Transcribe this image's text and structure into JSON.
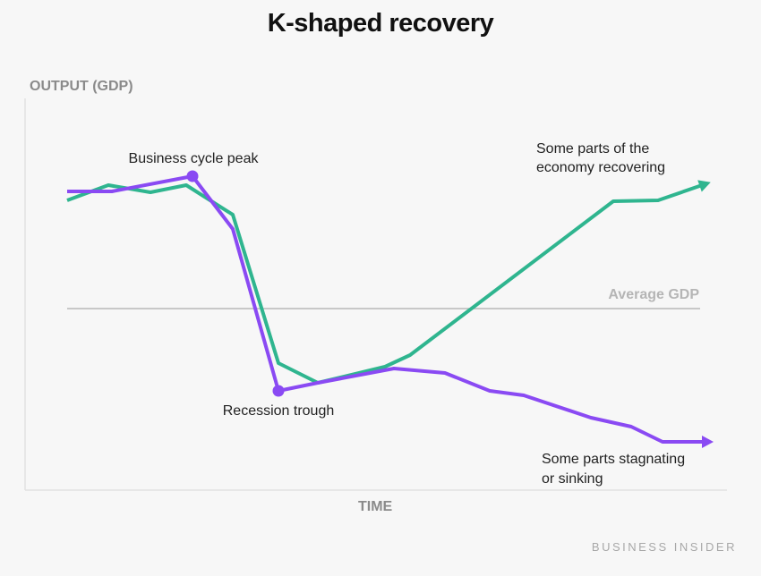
{
  "chart_data": {
    "type": "line",
    "title": "K-shaped recovery",
    "xlabel": "TIME",
    "ylabel": "OUTPUT (GDP)",
    "xlim": [
      0,
      80
    ],
    "ylim": [
      -20,
      25
    ],
    "grid": false,
    "reference_line": {
      "label": "Average GDP",
      "y": 0,
      "color": "#b0b0b0"
    },
    "series": [
      {
        "name": "Some parts of the economy recovering",
        "color": "#2fb58f",
        "arrow": true,
        "points": [
          [
            4.7,
            12.1
          ],
          [
            9.3,
            13.8
          ],
          [
            14,
            13
          ],
          [
            18,
            13.8
          ],
          [
            23.2,
            10.5
          ],
          [
            28.3,
            -6.1
          ],
          [
            32.7,
            -8.3
          ],
          [
            40.2,
            -6.5
          ],
          [
            43,
            -5.2
          ],
          [
            65.7,
            12
          ],
          [
            70.7,
            12.1
          ],
          [
            76.2,
            14
          ]
        ]
      },
      {
        "name": "Some parts stagnating or sinking",
        "color": "#8a4af3",
        "arrow": true,
        "points": [
          [
            4.7,
            13.1
          ],
          [
            9.7,
            13.1
          ],
          [
            18.7,
            14.8
          ],
          [
            23.2,
            8.9
          ],
          [
            28.3,
            -9.2
          ],
          [
            32.7,
            -8.3
          ],
          [
            41.2,
            -6.7
          ],
          [
            46.9,
            -7.2
          ],
          [
            51.9,
            -9.2
          ],
          [
            55.7,
            -9.7
          ],
          [
            63.2,
            -12.2
          ],
          [
            67.7,
            -13.2
          ],
          [
            71.2,
            -14.9
          ],
          [
            76.5,
            -14.9
          ]
        ]
      }
    ],
    "markers": [
      {
        "label": "Business cycle peak",
        "series": 1,
        "point": [
          18.7,
          14.8
        ]
      },
      {
        "label": "Recession trough",
        "series": 1,
        "point": [
          28.3,
          -9.2
        ]
      }
    ],
    "annotations": [
      {
        "lines": [
          "Some parts of the",
          "economy recovering"
        ]
      },
      {
        "lines": [
          "Some parts stagnating",
          "or sinking"
        ]
      }
    ]
  },
  "source": "BUSINESS INSIDER"
}
